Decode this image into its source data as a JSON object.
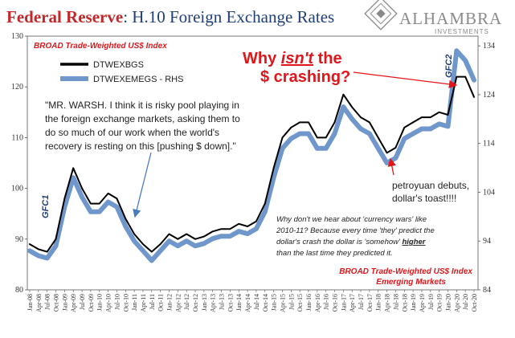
{
  "header": {
    "title_main": "Federal Reserve",
    "title_rest": ": H.10 Foreign Exchange Rates",
    "logo_name": "ALHAMBRA",
    "logo_sub": "INVESTMENTS"
  },
  "colors": {
    "title_red": "#c0282a",
    "title_blue": "#1f3f7a",
    "series_black": "#000000",
    "series_blue": "#6f97cc",
    "annotation_red": "#e0161b",
    "arrow_blue": "#4a7bbd",
    "logo_gray": "#8a8a8a"
  },
  "annotations": {
    "subtitle_top": "BROAD Trade-Weighted US$ Index",
    "crash_line1_pre": "Why ",
    "crash_line1_em": "isn't",
    "crash_line1_post": " the",
    "crash_line2": "$ crashing?",
    "quote_lines": [
      "\"MR. WARSH. I think it is risky pool playing in",
      "the foreign exchange markets, asking them to",
      "do so much of our work when the world's",
      "recovery is resting on this [pushing $ down].\""
    ],
    "gfc1": "GFC1",
    "gfc2": "GFC2",
    "petro_line1": "petroyuan debuts,",
    "petro_line2": "dollar's toast!!!!",
    "italic_lines": [
      "Why don't we hear about 'currency wars' like",
      "2010-11? Because every time 'they' predict the",
      "dollar's crash the dollar is 'somehow' ",
      "than the last time they predicted it."
    ],
    "italic_higher": "higher",
    "footer_line1": "BROAD Trade-Weighted US$ Index",
    "footer_line2": "Emerging Markets"
  },
  "chart_data": {
    "type": "line",
    "left_axis": {
      "ticks": [
        "80",
        "90",
        "100",
        "110",
        "120",
        "130"
      ],
      "ylim": [
        80,
        130
      ]
    },
    "right_axis": {
      "ticks": [
        "84",
        "94",
        "104",
        "114",
        "124",
        "134"
      ],
      "ylim": [
        84,
        136
      ]
    },
    "x_labels": [
      "Jan-08",
      "Apr-08",
      "Jul-08",
      "Oct-08",
      "Jan-09",
      "Apr-09",
      "Jul-09",
      "Oct-09",
      "Jan-10",
      "Apr-10",
      "Jul-10",
      "Oct-10",
      "Jan-11",
      "Apr-11",
      "Jul-11",
      "Oct-11",
      "Jan-12",
      "Apr-12",
      "Jul-12",
      "Oct-12",
      "Jan-13",
      "Apr-13",
      "Jul-13",
      "Oct-13",
      "Jan-14",
      "Apr-14",
      "Jul-14",
      "Oct-14",
      "Jan-15",
      "Apr-15",
      "Jul-15",
      "Oct-15",
      "Jan-16",
      "Apr-16",
      "Jul-16",
      "Oct-16",
      "Jan-17",
      "Apr-17",
      "Jul-17",
      "Oct-17",
      "Jan-18",
      "Apr-18",
      "Jul-18",
      "Oct-18",
      "Jan-19",
      "Apr-19",
      "Jul-19",
      "Oct-19",
      "Jan-20",
      "Apr-20",
      "Jul-20",
      "Oct-20"
    ],
    "series": [
      {
        "name": "DTWEXBGS",
        "axis": "left",
        "values": [
          89,
          88,
          87.5,
          90,
          98,
          104,
          100,
          97,
          97,
          99,
          98,
          94,
          91,
          89,
          87.5,
          89,
          91,
          90,
          91,
          90,
          90.5,
          91.5,
          92,
          92,
          93,
          92.5,
          93.5,
          97,
          104,
          110,
          112,
          113,
          113,
          110,
          110,
          113,
          118.5,
          116,
          114,
          113,
          110,
          107,
          108,
          112,
          113,
          114,
          114,
          115,
          114.5,
          122,
          122,
          118
        ]
      },
      {
        "name": "DTWEXEMEGS - RHS",
        "axis": "right",
        "values": [
          92,
          91,
          90.5,
          93,
          101,
          107,
          103,
          100,
          100,
          102,
          101,
          97,
          94,
          92,
          90,
          92,
          94,
          93,
          94,
          93,
          93.5,
          94.5,
          95,
          95,
          96,
          95.5,
          96.5,
          100,
          107,
          113,
          115,
          116,
          116,
          113,
          113,
          116,
          121.5,
          119,
          117,
          116,
          113,
          110,
          111,
          115,
          116,
          117,
          117,
          118,
          117.5,
          133,
          131,
          127
        ]
      }
    ]
  }
}
